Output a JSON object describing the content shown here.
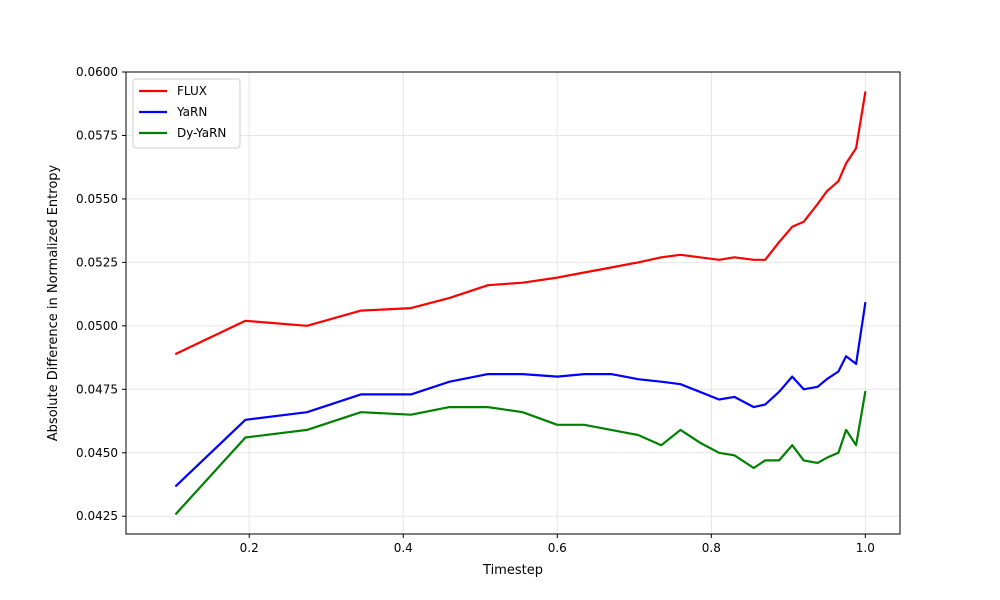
{
  "chart_data": {
    "type": "line",
    "xlabel": "Timestep",
    "ylabel": "Absolute Difference in Normalized Entropy",
    "xlim": [
      0.04,
      1.045
    ],
    "ylim": [
      0.0418,
      0.06
    ],
    "xticks": [
      0.2,
      0.4,
      0.6,
      0.8,
      1.0
    ],
    "xtick_labels": [
      "0.2",
      "0.4",
      "0.6",
      "0.8",
      "1.0"
    ],
    "yticks": [
      0.0425,
      0.045,
      0.0475,
      0.05,
      0.0525,
      0.055,
      0.0575,
      0.06
    ],
    "ytick_labels": [
      "0.0425",
      "0.0450",
      "0.0475",
      "0.0500",
      "0.0525",
      "0.0550",
      "0.0575",
      "0.0600"
    ],
    "grid": true,
    "legend_position": "top-left",
    "series": [
      {
        "name": "FLUX",
        "color": "#ff0000",
        "x": [
          0.105,
          0.195,
          0.275,
          0.345,
          0.41,
          0.46,
          0.51,
          0.555,
          0.6,
          0.635,
          0.67,
          0.705,
          0.735,
          0.76,
          0.785,
          0.81,
          0.83,
          0.855,
          0.87,
          0.888,
          0.905,
          0.92,
          0.938,
          0.95,
          0.965,
          0.975,
          0.988,
          1.0
        ],
        "y": [
          0.0489,
          0.0502,
          0.05,
          0.0506,
          0.0507,
          0.0511,
          0.0516,
          0.0517,
          0.0519,
          0.0521,
          0.0523,
          0.0525,
          0.0527,
          0.0528,
          0.0527,
          0.0526,
          0.0527,
          0.0526,
          0.0526,
          0.0533,
          0.0539,
          0.0541,
          0.0548,
          0.0553,
          0.0557,
          0.0564,
          0.057,
          0.0592
        ]
      },
      {
        "name": "YaRN",
        "color": "#0000ff",
        "x": [
          0.105,
          0.195,
          0.275,
          0.345,
          0.41,
          0.46,
          0.51,
          0.555,
          0.6,
          0.635,
          0.67,
          0.705,
          0.735,
          0.76,
          0.785,
          0.81,
          0.83,
          0.855,
          0.87,
          0.888,
          0.905,
          0.92,
          0.938,
          0.95,
          0.965,
          0.975,
          0.988,
          1.0
        ],
        "y": [
          0.0437,
          0.0463,
          0.0466,
          0.0473,
          0.0473,
          0.0478,
          0.0481,
          0.0481,
          0.048,
          0.0481,
          0.0481,
          0.0479,
          0.0478,
          0.0477,
          0.0474,
          0.0471,
          0.0472,
          0.0468,
          0.0469,
          0.0474,
          0.048,
          0.0475,
          0.0476,
          0.0479,
          0.0482,
          0.0488,
          0.0485,
          0.0509
        ]
      },
      {
        "name": "Dy-YaRN",
        "color": "#008000",
        "x": [
          0.105,
          0.195,
          0.275,
          0.345,
          0.41,
          0.46,
          0.51,
          0.555,
          0.6,
          0.635,
          0.67,
          0.705,
          0.735,
          0.76,
          0.785,
          0.81,
          0.83,
          0.855,
          0.87,
          0.888,
          0.905,
          0.92,
          0.938,
          0.95,
          0.965,
          0.975,
          0.988,
          1.0
        ],
        "y": [
          0.0426,
          0.0456,
          0.0459,
          0.0466,
          0.0465,
          0.0468,
          0.0468,
          0.0466,
          0.0461,
          0.0461,
          0.0459,
          0.0457,
          0.0453,
          0.0459,
          0.0454,
          0.045,
          0.0449,
          0.0444,
          0.0447,
          0.0447,
          0.0453,
          0.0447,
          0.0446,
          0.0448,
          0.045,
          0.0459,
          0.0453,
          0.0474
        ]
      }
    ]
  }
}
